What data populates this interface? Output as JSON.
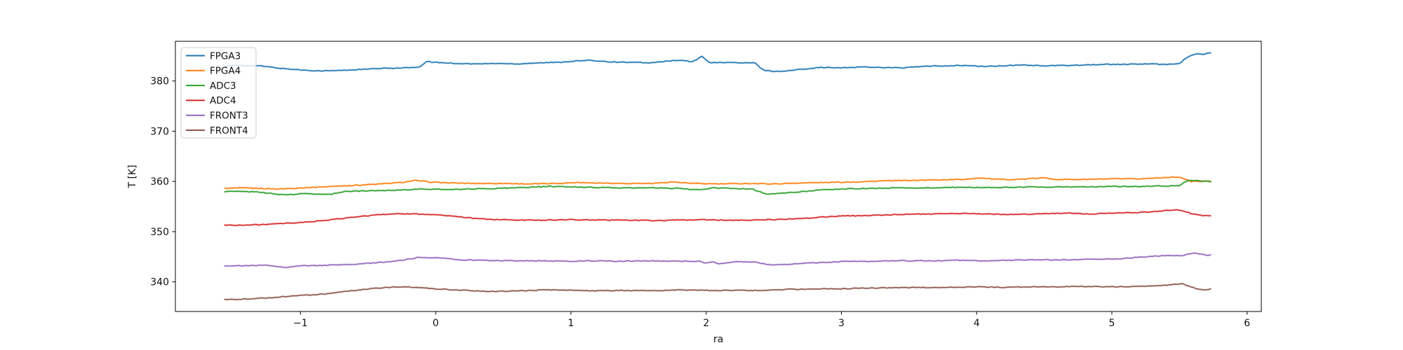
{
  "figure": {
    "background": "#ffffff"
  },
  "chart_data": {
    "type": "line",
    "title": "",
    "xlabel": "ra",
    "ylabel": "T [K]",
    "xlim": [
      -1.925,
      6.105
    ],
    "ylim": [
      334.1,
      387.9
    ],
    "xticks": [
      -1,
      0,
      1,
      2,
      3,
      4,
      5,
      6
    ],
    "xtick_labels": [
      "−1",
      "0",
      "1",
      "2",
      "3",
      "4",
      "5",
      "6"
    ],
    "yticks": [
      340,
      350,
      360,
      370,
      380
    ],
    "ytick_labels": [
      "340",
      "350",
      "360",
      "370",
      "380"
    ],
    "grid": false,
    "legend_position": "upper left",
    "spine_color": "#000000",
    "series": [
      {
        "name": "FPGA3",
        "color": "#1f77b4",
        "points": [
          [
            -1.56,
            383.0
          ],
          [
            -1.45,
            383.1
          ],
          [
            -1.3,
            383.0
          ],
          [
            -1.14,
            382.5
          ],
          [
            -1.0,
            382.2
          ],
          [
            -0.85,
            382.0
          ],
          [
            -0.7,
            382.1
          ],
          [
            -0.55,
            382.3
          ],
          [
            -0.4,
            382.5
          ],
          [
            -0.25,
            382.6
          ],
          [
            -0.12,
            382.7
          ],
          [
            -0.07,
            383.9
          ],
          [
            0.0,
            383.7
          ],
          [
            0.15,
            383.5
          ],
          [
            0.3,
            383.4
          ],
          [
            0.45,
            383.5
          ],
          [
            0.6,
            383.4
          ],
          [
            0.75,
            383.6
          ],
          [
            0.9,
            383.7
          ],
          [
            1.05,
            384.0
          ],
          [
            1.15,
            384.1
          ],
          [
            1.3,
            383.8
          ],
          [
            1.45,
            383.7
          ],
          [
            1.6,
            383.6
          ],
          [
            1.72,
            384.0
          ],
          [
            1.82,
            384.1
          ],
          [
            1.9,
            383.8
          ],
          [
            1.97,
            384.9
          ],
          [
            2.03,
            383.6
          ],
          [
            2.15,
            383.7
          ],
          [
            2.25,
            383.6
          ],
          [
            2.36,
            383.6
          ],
          [
            2.42,
            382.2
          ],
          [
            2.5,
            381.9
          ],
          [
            2.6,
            382.0
          ],
          [
            2.72,
            382.4
          ],
          [
            2.85,
            382.7
          ],
          [
            3.0,
            382.6
          ],
          [
            3.15,
            382.8
          ],
          [
            3.3,
            382.7
          ],
          [
            3.45,
            382.6
          ],
          [
            3.6,
            382.9
          ],
          [
            3.75,
            383.0
          ],
          [
            3.9,
            383.1
          ],
          [
            4.05,
            382.9
          ],
          [
            4.2,
            383.0
          ],
          [
            4.35,
            383.2
          ],
          [
            4.5,
            383.0
          ],
          [
            4.65,
            383.1
          ],
          [
            4.8,
            383.2
          ],
          [
            4.95,
            383.3
          ],
          [
            5.1,
            383.3
          ],
          [
            5.25,
            383.4
          ],
          [
            5.4,
            383.3
          ],
          [
            5.5,
            383.5
          ],
          [
            5.56,
            384.8
          ],
          [
            5.62,
            385.4
          ],
          [
            5.66,
            385.3
          ],
          [
            5.7,
            385.4
          ],
          [
            5.74,
            385.7
          ]
        ]
      },
      {
        "name": "FPGA4",
        "color": "#ff7f0e",
        "points": [
          [
            -1.56,
            358.6
          ],
          [
            -1.45,
            358.7
          ],
          [
            -1.3,
            358.6
          ],
          [
            -1.15,
            358.5
          ],
          [
            -1.0,
            358.7
          ],
          [
            -0.85,
            358.9
          ],
          [
            -0.7,
            359.1
          ],
          [
            -0.55,
            359.3
          ],
          [
            -0.4,
            359.5
          ],
          [
            -0.25,
            359.8
          ],
          [
            -0.15,
            360.2
          ],
          [
            -0.05,
            359.9
          ],
          [
            0.1,
            359.7
          ],
          [
            0.3,
            359.6
          ],
          [
            0.5,
            359.6
          ],
          [
            0.7,
            359.5
          ],
          [
            0.9,
            359.6
          ],
          [
            1.05,
            359.8
          ],
          [
            1.2,
            359.7
          ],
          [
            1.4,
            359.6
          ],
          [
            1.6,
            359.6
          ],
          [
            1.75,
            359.9
          ],
          [
            1.9,
            359.6
          ],
          [
            2.1,
            359.5
          ],
          [
            2.3,
            359.6
          ],
          [
            2.5,
            359.5
          ],
          [
            2.7,
            359.7
          ],
          [
            2.9,
            359.8
          ],
          [
            3.1,
            359.9
          ],
          [
            3.3,
            360.1
          ],
          [
            3.5,
            360.2
          ],
          [
            3.7,
            360.3
          ],
          [
            3.9,
            360.4
          ],
          [
            4.02,
            360.7
          ],
          [
            4.15,
            360.4
          ],
          [
            4.3,
            360.4
          ],
          [
            4.49,
            360.7
          ],
          [
            4.6,
            360.4
          ],
          [
            4.8,
            360.4
          ],
          [
            5.0,
            360.5
          ],
          [
            5.2,
            360.5
          ],
          [
            5.4,
            360.8
          ],
          [
            5.5,
            360.9
          ],
          [
            5.58,
            360.0
          ],
          [
            5.66,
            360.0
          ],
          [
            5.74,
            360.1
          ]
        ]
      },
      {
        "name": "ADC3",
        "color": "#2ca02c",
        "points": [
          [
            -1.56,
            358.0
          ],
          [
            -1.45,
            358.0
          ],
          [
            -1.3,
            357.9
          ],
          [
            -1.17,
            357.4
          ],
          [
            -1.05,
            357.4
          ],
          [
            -0.97,
            357.6
          ],
          [
            -0.88,
            357.5
          ],
          [
            -0.78,
            357.4
          ],
          [
            -0.68,
            358.0
          ],
          [
            -0.55,
            358.1
          ],
          [
            -0.4,
            358.2
          ],
          [
            -0.25,
            358.3
          ],
          [
            -0.1,
            358.5
          ],
          [
            0.05,
            358.4
          ],
          [
            0.25,
            358.5
          ],
          [
            0.45,
            358.6
          ],
          [
            0.65,
            358.8
          ],
          [
            0.85,
            359.0
          ],
          [
            1.0,
            358.9
          ],
          [
            1.2,
            358.8
          ],
          [
            1.4,
            358.7
          ],
          [
            1.6,
            358.7
          ],
          [
            1.8,
            358.6
          ],
          [
            1.95,
            358.3
          ],
          [
            2.05,
            358.7
          ],
          [
            2.2,
            358.6
          ],
          [
            2.34,
            358.5
          ],
          [
            2.44,
            357.5
          ],
          [
            2.6,
            357.7
          ],
          [
            2.8,
            358.2
          ],
          [
            3.0,
            358.5
          ],
          [
            3.2,
            358.6
          ],
          [
            3.4,
            358.7
          ],
          [
            3.6,
            358.7
          ],
          [
            3.8,
            358.8
          ],
          [
            4.0,
            358.8
          ],
          [
            4.2,
            358.8
          ],
          [
            4.4,
            358.9
          ],
          [
            4.6,
            358.9
          ],
          [
            4.8,
            358.9
          ],
          [
            5.0,
            359.0
          ],
          [
            5.2,
            359.0
          ],
          [
            5.4,
            359.1
          ],
          [
            5.5,
            359.2
          ],
          [
            5.56,
            360.2
          ],
          [
            5.65,
            360.1
          ],
          [
            5.74,
            360.0
          ]
        ]
      },
      {
        "name": "ADC4",
        "color": "#d62728",
        "points": [
          [
            -1.56,
            351.3
          ],
          [
            -1.4,
            351.3
          ],
          [
            -1.2,
            351.5
          ],
          [
            -1.0,
            351.8
          ],
          [
            -0.8,
            352.3
          ],
          [
            -0.6,
            352.9
          ],
          [
            -0.45,
            353.3
          ],
          [
            -0.3,
            353.6
          ],
          [
            -0.15,
            353.5
          ],
          [
            0.0,
            353.4
          ],
          [
            0.15,
            353.0
          ],
          [
            0.3,
            352.6
          ],
          [
            0.45,
            352.4
          ],
          [
            0.6,
            352.3
          ],
          [
            0.8,
            352.3
          ],
          [
            1.0,
            352.4
          ],
          [
            1.2,
            352.3
          ],
          [
            1.4,
            352.3
          ],
          [
            1.6,
            352.2
          ],
          [
            1.8,
            352.3
          ],
          [
            1.95,
            352.4
          ],
          [
            2.1,
            352.3
          ],
          [
            2.3,
            352.3
          ],
          [
            2.5,
            352.4
          ],
          [
            2.7,
            352.6
          ],
          [
            2.85,
            352.9
          ],
          [
            3.0,
            353.1
          ],
          [
            3.15,
            353.2
          ],
          [
            3.3,
            353.3
          ],
          [
            3.5,
            353.5
          ],
          [
            3.7,
            353.5
          ],
          [
            3.9,
            353.6
          ],
          [
            4.1,
            353.5
          ],
          [
            4.3,
            353.4
          ],
          [
            4.5,
            353.6
          ],
          [
            4.7,
            353.7
          ],
          [
            4.85,
            353.5
          ],
          [
            5.0,
            353.7
          ],
          [
            5.2,
            353.8
          ],
          [
            5.4,
            354.2
          ],
          [
            5.49,
            354.4
          ],
          [
            5.6,
            353.5
          ],
          [
            5.68,
            353.2
          ],
          [
            5.74,
            353.2
          ]
        ]
      },
      {
        "name": "FRONT3",
        "color": "#9467bd",
        "points": [
          [
            -1.56,
            343.2
          ],
          [
            -1.4,
            343.2
          ],
          [
            -1.25,
            343.3
          ],
          [
            -1.1,
            342.9
          ],
          [
            -1.0,
            343.2
          ],
          [
            -0.8,
            343.3
          ],
          [
            -0.6,
            343.5
          ],
          [
            -0.4,
            343.9
          ],
          [
            -0.25,
            344.3
          ],
          [
            -0.12,
            344.9
          ],
          [
            -0.05,
            344.7
          ],
          [
            0.05,
            344.8
          ],
          [
            0.18,
            344.4
          ],
          [
            0.35,
            344.3
          ],
          [
            0.55,
            344.2
          ],
          [
            0.75,
            344.2
          ],
          [
            0.95,
            344.1
          ],
          [
            1.15,
            344.2
          ],
          [
            1.35,
            344.1
          ],
          [
            1.55,
            344.2
          ],
          [
            1.75,
            344.1
          ],
          [
            1.95,
            344.1
          ],
          [
            2.0,
            343.7
          ],
          [
            2.05,
            344.0
          ],
          [
            2.1,
            343.6
          ],
          [
            2.2,
            344.0
          ],
          [
            2.35,
            344.0
          ],
          [
            2.45,
            343.4
          ],
          [
            2.6,
            343.5
          ],
          [
            2.75,
            343.7
          ],
          [
            2.9,
            343.9
          ],
          [
            3.05,
            344.1
          ],
          [
            3.25,
            344.1
          ],
          [
            3.45,
            344.2
          ],
          [
            3.65,
            344.2
          ],
          [
            3.85,
            344.3
          ],
          [
            4.05,
            344.2
          ],
          [
            4.25,
            344.3
          ],
          [
            4.45,
            344.4
          ],
          [
            4.65,
            344.4
          ],
          [
            4.85,
            344.5
          ],
          [
            5.05,
            344.6
          ],
          [
            5.25,
            345.0
          ],
          [
            5.42,
            345.3
          ],
          [
            5.52,
            345.2
          ],
          [
            5.61,
            345.8
          ],
          [
            5.68,
            345.4
          ],
          [
            5.74,
            345.3
          ]
        ]
      },
      {
        "name": "FRONT4",
        "color": "#8c564b",
        "points": [
          [
            -1.56,
            336.5
          ],
          [
            -1.4,
            336.6
          ],
          [
            -1.2,
            336.9
          ],
          [
            -1.0,
            337.3
          ],
          [
            -0.8,
            337.6
          ],
          [
            -0.6,
            338.3
          ],
          [
            -0.45,
            338.7
          ],
          [
            -0.3,
            339.0
          ],
          [
            -0.15,
            338.9
          ],
          [
            0.0,
            338.6
          ],
          [
            0.15,
            338.4
          ],
          [
            0.3,
            338.2
          ],
          [
            0.45,
            338.1
          ],
          [
            0.6,
            338.2
          ],
          [
            0.8,
            338.4
          ],
          [
            1.0,
            338.3
          ],
          [
            1.2,
            338.2
          ],
          [
            1.4,
            338.3
          ],
          [
            1.6,
            338.2
          ],
          [
            1.8,
            338.4
          ],
          [
            2.0,
            338.3
          ],
          [
            2.2,
            338.3
          ],
          [
            2.4,
            338.3
          ],
          [
            2.6,
            338.5
          ],
          [
            2.8,
            338.6
          ],
          [
            3.0,
            338.6
          ],
          [
            3.2,
            338.8
          ],
          [
            3.4,
            338.8
          ],
          [
            3.6,
            338.9
          ],
          [
            3.8,
            338.9
          ],
          [
            4.0,
            339.0
          ],
          [
            4.2,
            338.9
          ],
          [
            4.4,
            339.0
          ],
          [
            4.6,
            339.0
          ],
          [
            4.8,
            339.1
          ],
          [
            5.0,
            339.0
          ],
          [
            5.2,
            339.1
          ],
          [
            5.42,
            339.4
          ],
          [
            5.52,
            339.6
          ],
          [
            5.6,
            338.9
          ],
          [
            5.66,
            338.4
          ],
          [
            5.74,
            338.6
          ]
        ]
      }
    ]
  }
}
